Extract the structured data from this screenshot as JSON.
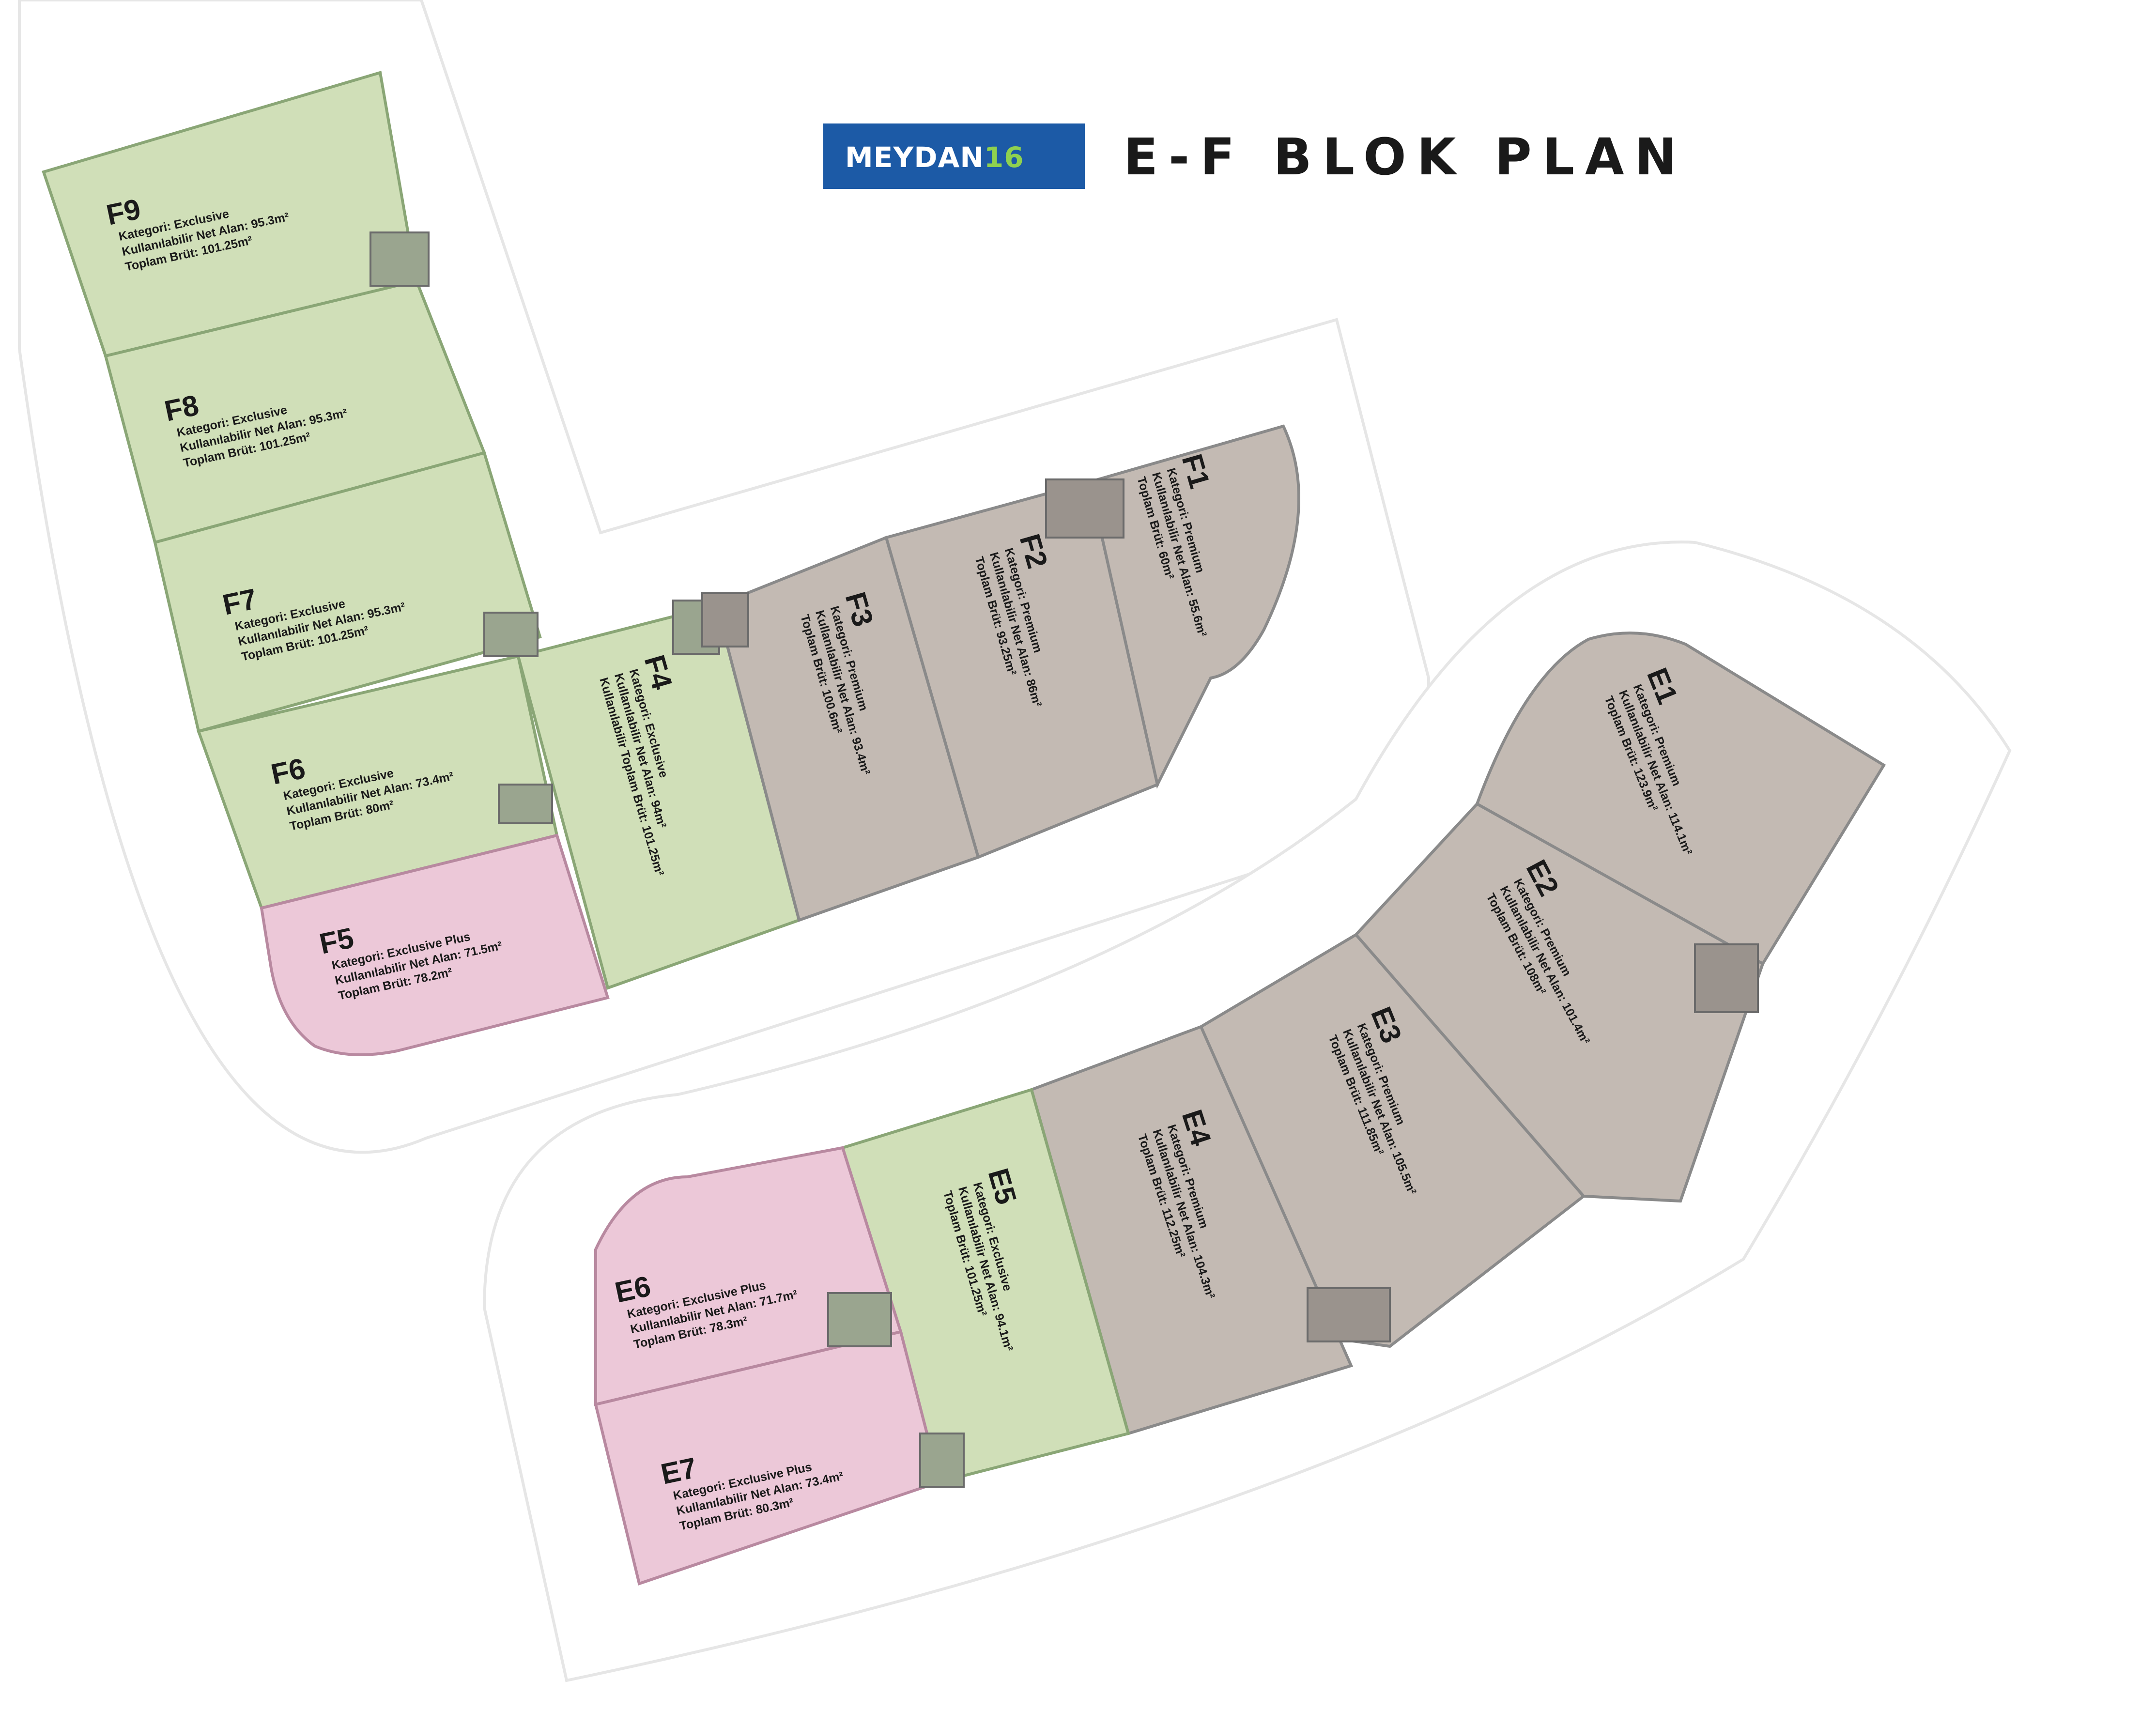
{
  "header": {
    "brand_name": "MEYDAN",
    "brand_number": "16",
    "title": "E-F BLOK PLAN"
  },
  "colors": {
    "exclusive": "#d0dfb8",
    "premium": "#c3bab3",
    "exclusive_plus": "#ecc8d8",
    "brand_blue": "#1c5aa6",
    "brand_green": "#8fd14f",
    "site_outline": "#e6e6e6"
  },
  "units": [
    {
      "id": "F9",
      "category": "Kategori: Exclusive",
      "net_area": "Kullanılabilir Net Alan: 95.3m²",
      "gross_area": "Toplam Brüt: 101.25m²"
    },
    {
      "id": "F8",
      "category": "Kategori: Exclusive",
      "net_area": "Kullanılabilir Net Alan: 95.3m²",
      "gross_area": "Toplam Brüt: 101.25m²"
    },
    {
      "id": "F7",
      "category": "Kategori: Exclusive",
      "net_area": "Kullanılabilir Net Alan: 95.3m²",
      "gross_area": "Toplam Brüt: 101.25m²"
    },
    {
      "id": "F6",
      "category": "Kategori: Exclusive",
      "net_area": "Kullanılabilir Net Alan: 73.4m²",
      "gross_area": "Toplam Brüt: 80m²"
    },
    {
      "id": "F5",
      "category": "Kategori: Exclusive Plus",
      "net_area": "Kullanılabilir Net Alan: 71.5m²",
      "gross_area": "Toplam Brüt: 78.2m²"
    },
    {
      "id": "F4",
      "category": "Kategori: Exclusive",
      "net_area": "Kullanılabilir Net Alan: 94m²",
      "gross_area": "Kullanılabilir Toplam Brüt: 101.25m²"
    },
    {
      "id": "F3",
      "category": "Kategori: Premium",
      "net_area": "Kullanılabilir Net Alan: 93.4m²",
      "gross_area": "Toplam Brüt: 100.6m²"
    },
    {
      "id": "F2",
      "category": "Kategori: Premium",
      "net_area": "Kullanılabilir Net Alan: 86m²",
      "gross_area": "Toplam Brüt: 93.25m²"
    },
    {
      "id": "F1",
      "category": "Kategori: Premium",
      "net_area": "Kullanılabilir Net Alan: 55.6m²",
      "gross_area": "Toplam Brüt: 60m²"
    },
    {
      "id": "E1",
      "category": "Kategori: Premium",
      "net_area": "Kullanılabilir Net Alan: 114.1m²",
      "gross_area": "Toplam Brüt: 123.9m²"
    },
    {
      "id": "E2",
      "category": "Kategori: Premium",
      "net_area": "Kullanılabilir Net Alan: 101.4m²",
      "gross_area": "Toplam Brüt: 108m²"
    },
    {
      "id": "E3",
      "category": "Kategori: Premium",
      "net_area": "Kullanılabilir Net Alan: 105.5m²",
      "gross_area": "Toplam Brüt: 111.85m²"
    },
    {
      "id": "E4",
      "category": "Kategori: Premium",
      "net_area": "Kullanılabilir Net Alan: 104.3m²",
      "gross_area": "Toplam Brüt: 112.25m²"
    },
    {
      "id": "E5",
      "category": "Kategori: Exclusive",
      "net_area": "Kullanılabilir Net Alan: 94.1m²",
      "gross_area": "Toplam Brüt: 101.25m²"
    },
    {
      "id": "E6",
      "category": "Kategori: Exclusive Plus",
      "net_area": "Kullanılabilir Net Alan: 71.7m²",
      "gross_area": "Toplam Brüt: 78.3m²"
    },
    {
      "id": "E7",
      "category": "Kategori: Exclusive Plus",
      "net_area": "Kullanılabilir Net Alan: 73.4m²",
      "gross_area": "Toplam Brüt: 80.3m²"
    }
  ]
}
